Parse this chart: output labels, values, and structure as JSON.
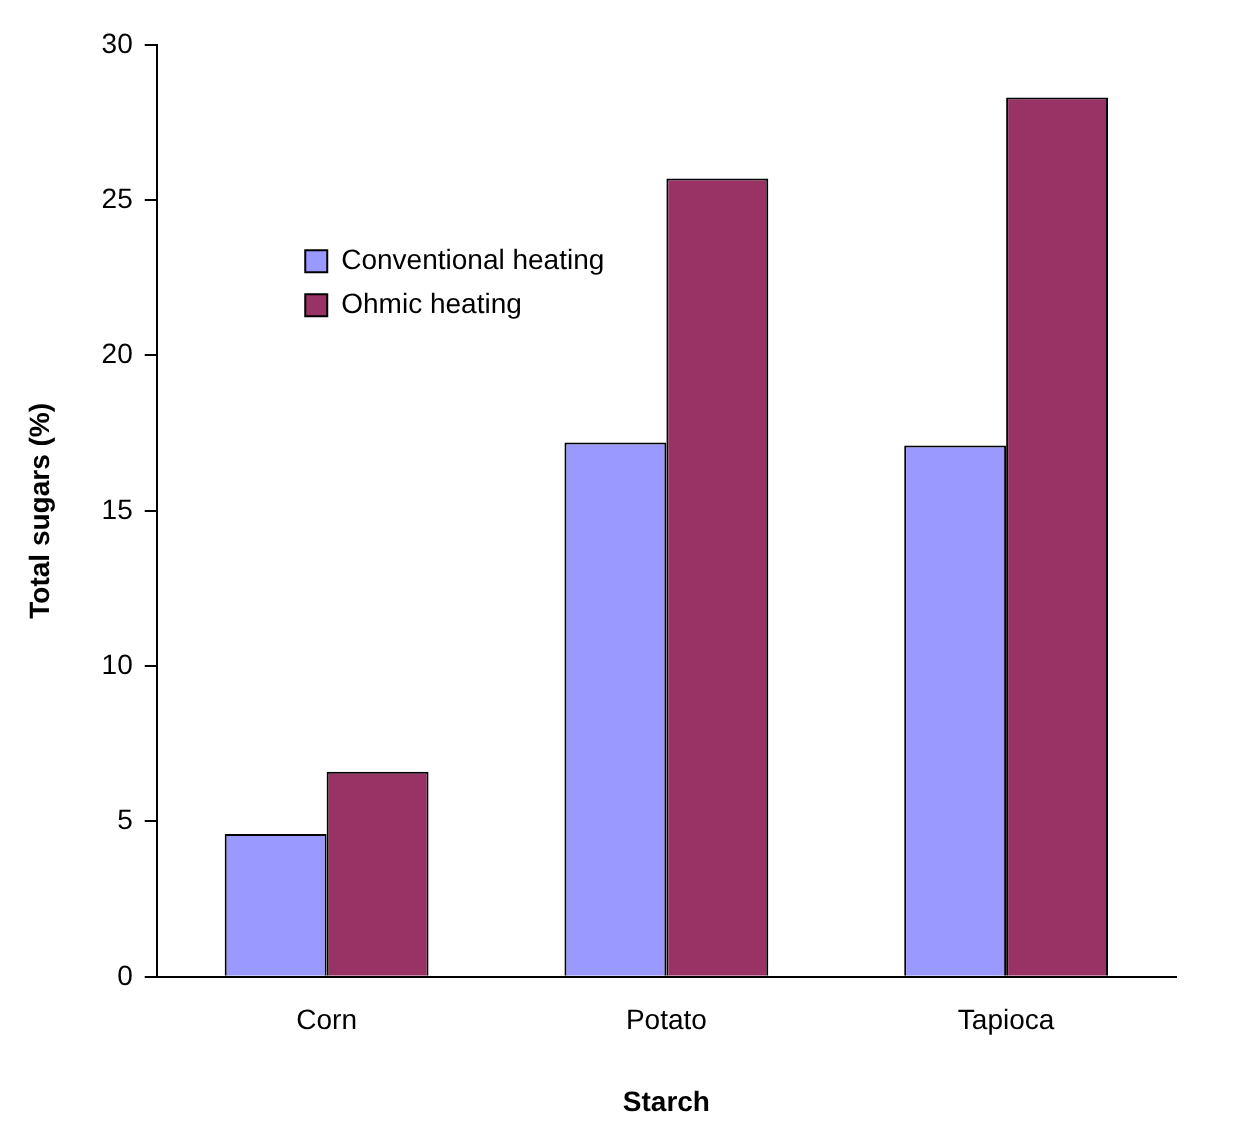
{
  "chart_data": {
    "type": "bar",
    "xlabel": "Starch",
    "ylabel": "Total sugars (%)",
    "categories": [
      "Corn",
      "Potato",
      "Tapioca"
    ],
    "series": [
      {
        "name": "Conventional heating",
        "color": "#9999ff",
        "values": [
          4.6,
          17.2,
          17.1
        ]
      },
      {
        "name": "Ohmic heating",
        "color": "#993366",
        "values": [
          6.6,
          25.7,
          28.3
        ]
      }
    ],
    "ylim": [
      0,
      30
    ],
    "yticks": [
      0,
      5,
      10,
      15,
      20,
      25,
      30
    ],
    "grid": false,
    "legend": "top left"
  }
}
